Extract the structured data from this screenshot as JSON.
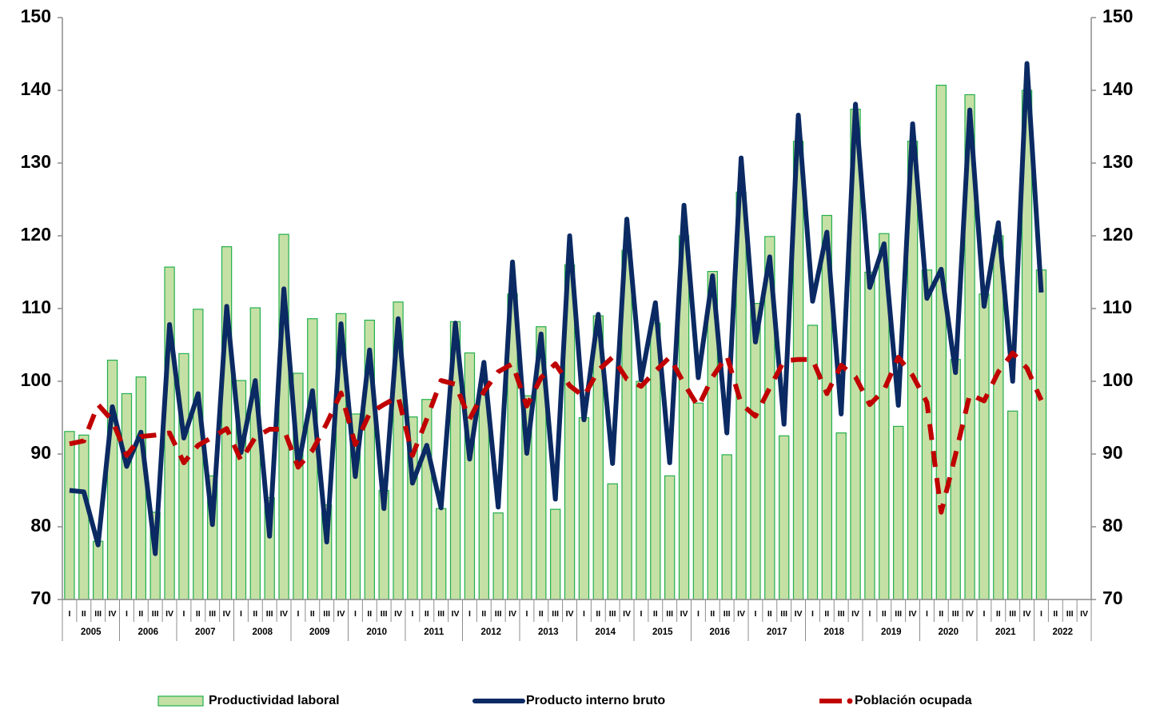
{
  "chart_data": {
    "type": "bar_line",
    "categories": [
      "I",
      "II",
      "III",
      "IV",
      "I",
      "II",
      "III",
      "IV",
      "I",
      "II",
      "III",
      "IV",
      "I",
      "II",
      "III",
      "IV",
      "I",
      "II",
      "III",
      "IV",
      "I",
      "II",
      "III",
      "IV",
      "I",
      "II",
      "III",
      "IV",
      "I",
      "II",
      "III",
      "IV",
      "I",
      "II",
      "III",
      "IV",
      "I",
      "II",
      "III",
      "IV",
      "I",
      "II",
      "III",
      "IV",
      "I",
      "II",
      "III",
      "IV",
      "I",
      "II",
      "III",
      "IV",
      "I",
      "II",
      "III",
      "IV",
      "I",
      "II",
      "III",
      "IV",
      "I",
      "II",
      "III",
      "IV",
      "I",
      "II",
      "III",
      "IV",
      "I",
      "II",
      "III",
      "IV"
    ],
    "years": [
      "2005",
      "2006",
      "2007",
      "2008",
      "2009",
      "2010",
      "2011",
      "2012",
      "2013",
      "2014",
      "2015",
      "2016",
      "2017",
      "2018",
      "2019",
      "2020",
      "2021",
      "2022"
    ],
    "ylim": [
      70,
      150
    ],
    "yticks": [
      70,
      80,
      90,
      100,
      110,
      120,
      130,
      140,
      150
    ],
    "y2lim": [
      70,
      150
    ],
    "y2ticks": [
      70,
      80,
      90,
      100,
      110,
      120,
      130,
      140,
      150
    ],
    "series": [
      {
        "name": "Productividad laboral",
        "type": "bar",
        "color": "#c5e0a5",
        "edge_color": "#22b04c",
        "values": [
          93.1,
          92.6,
          78,
          102.9,
          98.3,
          100.6,
          82,
          115.7,
          103.8,
          109.9,
          87,
          118.5,
          100.1,
          110.1,
          84,
          120.2,
          101.1,
          108.6,
          83,
          109.3,
          95.5,
          108.4,
          85,
          110.9,
          95.1,
          97.5,
          82.5,
          108.2,
          103.9,
          99,
          81.9,
          112,
          98,
          107.5,
          82.4,
          116,
          95,
          109,
          85.9,
          118,
          100,
          108,
          87,
          120,
          97,
          115.1,
          89.9,
          126,
          110.7,
          119.9,
          92.5,
          133,
          107.7,
          122.8,
          92.9,
          137.4,
          115,
          120.3,
          93.8,
          133,
          115.3,
          140.7,
          103,
          139.4,
          112,
          120,
          95.9,
          140,
          115.3,
          null,
          null,
          null
        ]
      },
      {
        "name": "Producto interno bruto",
        "type": "line",
        "line_style": "solid",
        "color": "#0b2a63",
        "values": [
          85,
          84.8,
          77.5,
          96.5,
          88.3,
          93,
          76.3,
          107.8,
          92.2,
          98.3,
          80.3,
          110.3,
          90.2,
          100.1,
          78.7,
          112.7,
          88.2,
          98.7,
          77.9,
          107.9,
          86.9,
          104.3,
          82.5,
          108.6,
          86,
          91.2,
          82.6,
          108,
          89.3,
          102.6,
          82.7,
          116.4,
          90.1,
          106.5,
          83.8,
          120,
          94.7,
          109.2,
          88.7,
          122.3,
          100.2,
          110.8,
          88.8,
          124.2,
          100.5,
          114.5,
          92.9,
          130.7,
          105.4,
          117.1,
          94.1,
          136.6,
          111,
          120.5,
          95.5,
          138.1,
          112.9,
          118.9,
          96.7,
          135.4,
          111.4,
          115.4,
          101.2,
          137.3,
          110.3,
          121.8,
          100,
          143.7,
          112.2,
          null,
          null,
          null
        ]
      },
      {
        "name": "Población ocupada",
        "type": "line",
        "line_style": "dashed",
        "color": "#c00000",
        "values": [
          91.4,
          91.8,
          96.8,
          94.6,
          89.8,
          92.4,
          92.6,
          92.9,
          88.8,
          91.2,
          92.3,
          93.5,
          89.1,
          92.3,
          93.4,
          93.4,
          88.2,
          90.5,
          94.2,
          98.4,
          91.3,
          95.6,
          96.8,
          97.9,
          89.8,
          94.8,
          100.1,
          99.6,
          94.8,
          98.6,
          101.3,
          102.4,
          96.6,
          100.5,
          102.4,
          99.4,
          97.9,
          101.5,
          103.3,
          100.3,
          99.3,
          101.4,
          103.3,
          99.7,
          96.5,
          100.6,
          103.5,
          96.9,
          95.2,
          99.1,
          102.8,
          103,
          103,
          98.3,
          102.2,
          100.6,
          96.8,
          98.8,
          103.3,
          100.8,
          97.1,
          82,
          89.9,
          98.2,
          97.3,
          101.3,
          103.9,
          101.8,
          97.4,
          null,
          null,
          null
        ]
      }
    ],
    "legend": "bottom"
  }
}
